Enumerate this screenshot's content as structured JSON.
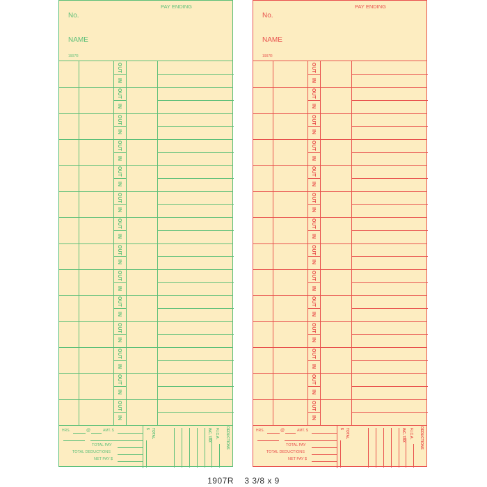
{
  "cards": [
    {
      "id": "green",
      "color": "#5cbf78"
    },
    {
      "id": "red",
      "color": "#e8504c"
    }
  ],
  "header": {
    "no_label": "No.",
    "name_label": "NAME",
    "pay_ending_label": "PAY ENDING",
    "form_code": "1907R"
  },
  "rows": {
    "count": 14,
    "out_label": "OUT",
    "in_label": "IN"
  },
  "footer": {
    "hrs_label": "HRS.",
    "at_label": "@",
    "amt_label": "AMT. $",
    "total_pay_label": "TOTAL PAY",
    "total_deductions_label": "TOTAL DEDUCTIONS",
    "net_pay_label": "NET PAY $",
    "total_label": "TOTAL",
    "dollar_label": "$",
    "fica_label": "F.I.C.A.",
    "inc_tax_label": "INC. TAX",
    "deductions_label": "DEDUCTIONS"
  },
  "caption": "1907R    3 3/8 x 9"
}
